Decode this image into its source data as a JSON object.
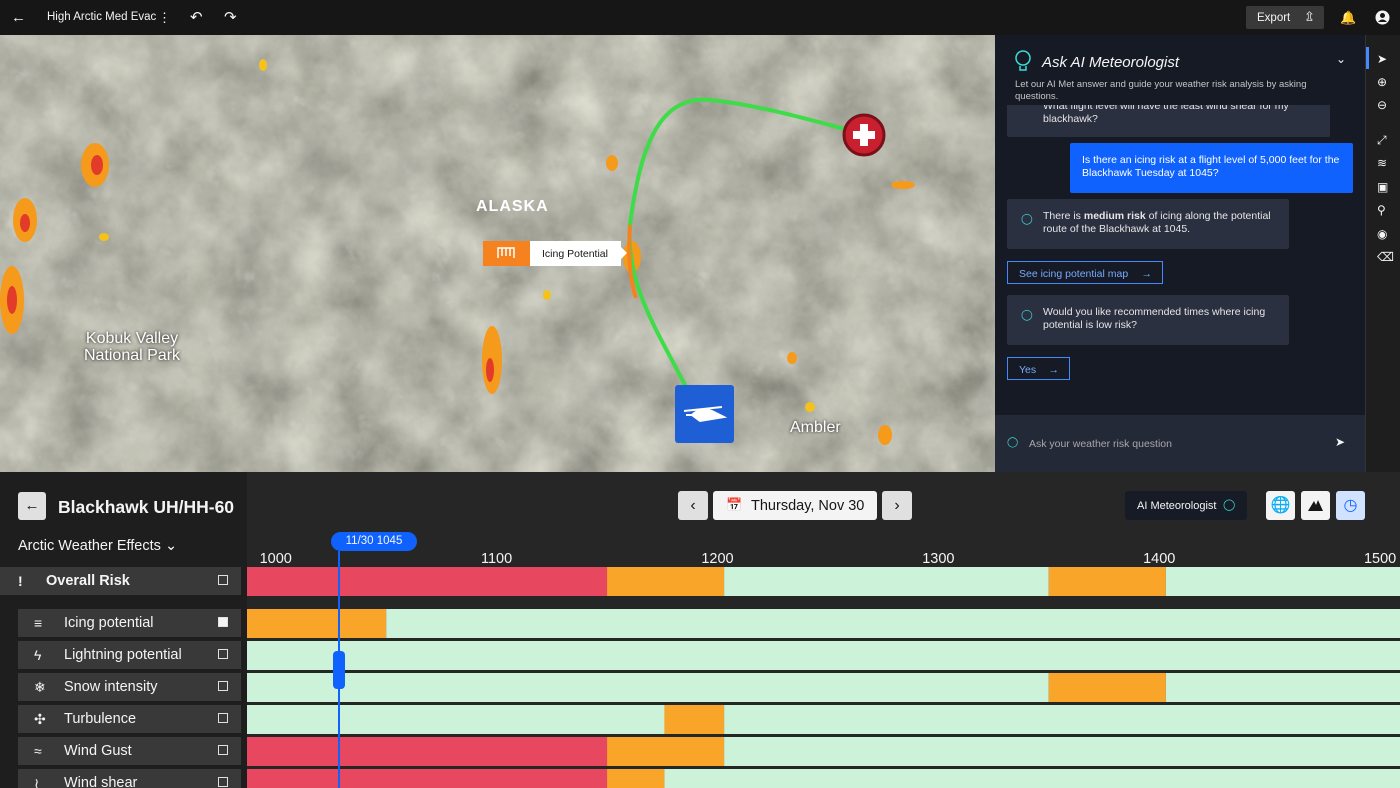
{
  "top_bar": {
    "title": "High Arctic Med Evac",
    "export": "Export"
  },
  "map": {
    "region_label": "ALASKA",
    "places": [
      "Kobuk Valley National Park",
      "Ambler"
    ],
    "callout": "Icing Potential"
  },
  "chat": {
    "title": "Ask AI Meteorologist",
    "subtitle": "Let our AI Met answer and guide your weather risk analysis by asking questions.",
    "messages": [
      {
        "from": "bot",
        "parts": [
          "What flight level will have the least wind shear for my blackhawk?"
        ]
      },
      {
        "from": "user",
        "parts": [
          "Is there an icing risk at a flight level of 5,000 feet for the Blackhawk Tuesday at 1045?"
        ]
      },
      {
        "from": "bot",
        "parts": [
          "There is ",
          "medium risk",
          " of icing along the potential route of the Blackhawk at 1045."
        ]
      },
      {
        "from": "action",
        "parts": [
          "See icing potential map"
        ]
      },
      {
        "from": "bot",
        "parts": [
          "Would you like recommended times where icing potential is low risk?"
        ]
      },
      {
        "from": "action",
        "parts": [
          "Yes"
        ]
      }
    ],
    "input_placeholder": "Ask your weather risk question"
  },
  "panel": {
    "aircraft": "Blackhawk UH/HH-60",
    "group": "Arctic Weather Effects",
    "date": "Thursday, Nov 30",
    "ai_button": "AI Meteorologist",
    "cursor_label": "11/30 1045"
  },
  "timeline": {
    "xlim": [
      987,
      1509
    ],
    "xticks": [
      1000,
      1100,
      1200,
      1300,
      1400,
      1500
    ],
    "rows": [
      {
        "name": "Overall Risk",
        "checked": false,
        "segments": [
          {
            "start": 987,
            "end": 1150,
            "color": "#e8485f"
          },
          {
            "start": 1150,
            "end": 1203,
            "color": "#f8a52a"
          },
          {
            "start": 1203,
            "end": 1350,
            "color": "#cdf2da"
          },
          {
            "start": 1350,
            "end": 1403,
            "color": "#f8a52a"
          },
          {
            "start": 1403,
            "end": 1509,
            "color": "#cdf2da"
          }
        ]
      },
      {
        "name": "Icing potential",
        "checked": true,
        "segments": [
          {
            "start": 987,
            "end": 1050,
            "color": "#f8a52a"
          },
          {
            "start": 1050,
            "end": 1509,
            "color": "#cdf2da"
          }
        ]
      },
      {
        "name": "Lightning potential",
        "checked": false,
        "segments": [
          {
            "start": 987,
            "end": 1509,
            "color": "#cdf2da"
          }
        ]
      },
      {
        "name": "Snow intensity",
        "checked": false,
        "segments": [
          {
            "start": 987,
            "end": 1350,
            "color": "#cdf2da"
          },
          {
            "start": 1350,
            "end": 1403,
            "color": "#f8a52a"
          },
          {
            "start": 1403,
            "end": 1509,
            "color": "#cdf2da"
          }
        ]
      },
      {
        "name": "Turbulence",
        "checked": false,
        "segments": [
          {
            "start": 987,
            "end": 1176,
            "color": "#cdf2da"
          },
          {
            "start": 1176,
            "end": 1203,
            "color": "#f8a52a"
          },
          {
            "start": 1203,
            "end": 1509,
            "color": "#cdf2da"
          }
        ]
      },
      {
        "name": "Wind Gust",
        "checked": false,
        "segments": [
          {
            "start": 987,
            "end": 1150,
            "color": "#e8485f"
          },
          {
            "start": 1150,
            "end": 1203,
            "color": "#f8a52a"
          },
          {
            "start": 1203,
            "end": 1509,
            "color": "#cdf2da"
          }
        ]
      },
      {
        "name": "Wind shear",
        "checked": false,
        "segments": [
          {
            "start": 987,
            "end": 1150,
            "color": "#e8485f"
          },
          {
            "start": 1150,
            "end": 1176,
            "color": "#f8a52a"
          },
          {
            "start": 1176,
            "end": 1509,
            "color": "#cdf2da"
          }
        ]
      }
    ]
  }
}
